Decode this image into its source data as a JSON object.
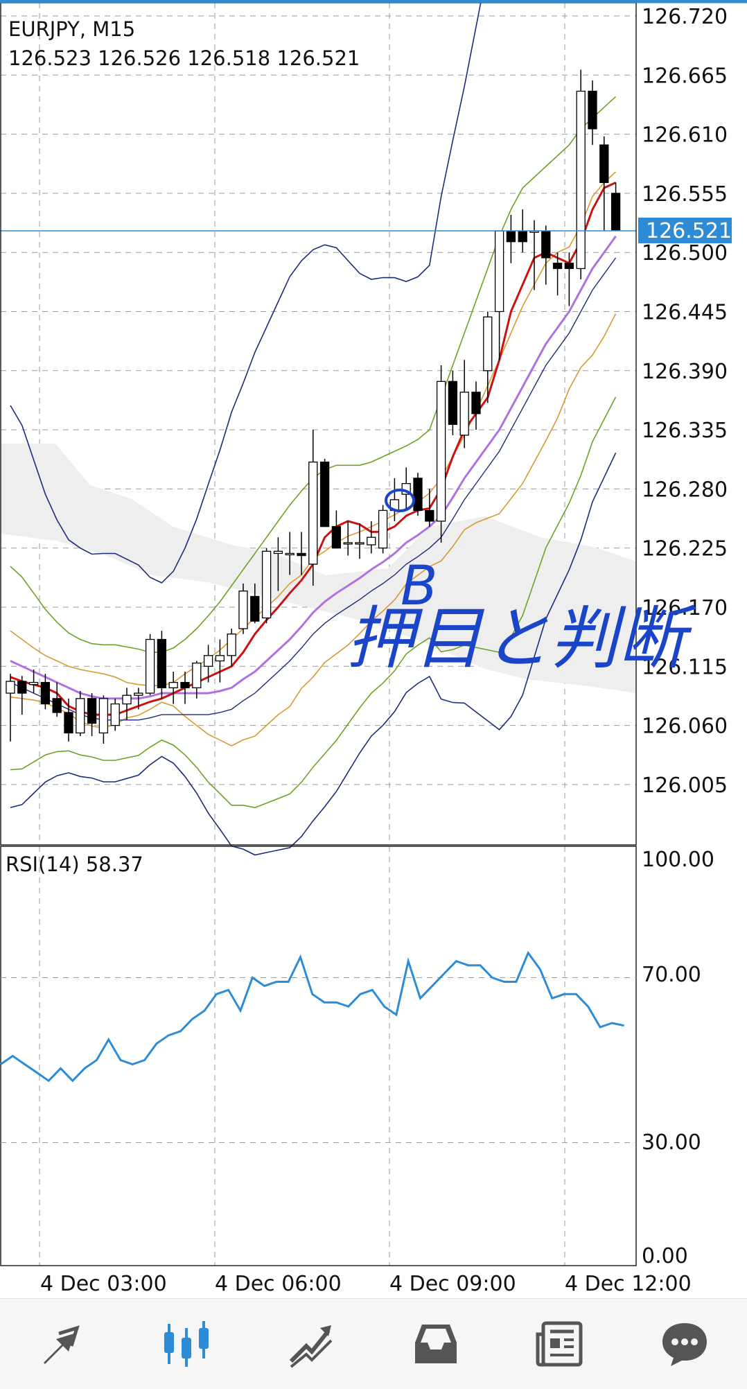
{
  "symbol": "EURJPY, M15",
  "ohlc_text": "126.523 126.526 126.518 126.521",
  "current_price": "126.521",
  "price_axis_labels": [
    "126.720",
    "126.665",
    "126.610",
    "126.555",
    "126.500",
    "126.445",
    "126.390",
    "126.335",
    "126.280",
    "126.225",
    "126.170",
    "126.115",
    "126.060",
    "126.005"
  ],
  "time_labels": [
    "4 Dec 03:00",
    "4 Dec 06:00",
    "4 Dec 09:00",
    "4 Dec 12:00"
  ],
  "rsi_title": "RSI(14) 58.37",
  "rsi_axis_labels": [
    "100.00",
    "70.00",
    "30.00",
    "0.00"
  ],
  "annotation_b": "B",
  "annotation_text": "押目と判断",
  "colors": {
    "rsi_line": "#2e8bd6",
    "ma_fast": "#cc1111",
    "ma_mid": "#b070e0",
    "bb_inner": "#d79a30",
    "bb_middle": "#6ea024",
    "bb_outer": "#1c2a7a",
    "cloud": "#eeeeee",
    "current_price_bg": "#2e8bd6",
    "handwriting": "#1a45c8",
    "nav_active": "#2e8bd6",
    "nav_inactive": "#555555"
  },
  "nav_items": [
    "quotes-icon",
    "chart-icon",
    "trade-icon",
    "history-icon",
    "news-icon",
    "chat-icon"
  ],
  "nav_active_index": 1,
  "chart_data": {
    "type": "candlestick",
    "timeframe": "M15",
    "ylim": [
      125.95,
      126.73
    ],
    "ohlc": [
      [
        126.09,
        126.108,
        126.045,
        126.101
      ],
      [
        126.101,
        126.106,
        126.07,
        126.09
      ],
      [
        126.098,
        126.112,
        126.09,
        126.1
      ],
      [
        126.1,
        126.108,
        126.075,
        126.08
      ],
      [
        126.085,
        126.1,
        126.068,
        126.072
      ],
      [
        126.072,
        126.085,
        126.045,
        126.053
      ],
      [
        126.053,
        126.092,
        126.05,
        126.085
      ],
      [
        126.085,
        126.09,
        126.05,
        126.062
      ],
      [
        126.053,
        126.088,
        126.043,
        126.085
      ],
      [
        126.06,
        126.085,
        126.055,
        126.08
      ],
      [
        126.08,
        126.095,
        126.065,
        126.088
      ],
      [
        126.088,
        126.095,
        126.075,
        126.09
      ],
      [
        126.09,
        126.145,
        126.088,
        126.14
      ],
      [
        126.14,
        126.148,
        126.085,
        126.095
      ],
      [
        126.095,
        126.11,
        126.08,
        126.1
      ],
      [
        126.1,
        126.11,
        126.08,
        126.095
      ],
      [
        126.095,
        126.12,
        126.085,
        126.118
      ],
      [
        126.115,
        126.135,
        126.1,
        126.125
      ],
      [
        126.12,
        126.14,
        126.1,
        126.125
      ],
      [
        126.125,
        126.15,
        126.115,
        126.145
      ],
      [
        126.15,
        126.192,
        126.145,
        126.185
      ],
      [
        126.18,
        126.192,
        126.155,
        126.157
      ],
      [
        126.16,
        126.225,
        126.155,
        126.222
      ],
      [
        126.22,
        126.235,
        126.185,
        126.222
      ],
      [
        126.22,
        126.24,
        126.2,
        126.22
      ],
      [
        126.22,
        126.24,
        126.2,
        126.218
      ],
      [
        126.21,
        126.335,
        126.19,
        126.305
      ],
      [
        126.305,
        126.308,
        126.245,
        126.245
      ],
      [
        126.245,
        126.26,
        126.225,
        126.225
      ],
      [
        126.23,
        126.25,
        126.218,
        126.23
      ],
      [
        126.23,
        126.248,
        126.215,
        126.23
      ],
      [
        126.228,
        126.25,
        126.22,
        126.235
      ],
      [
        126.225,
        126.265,
        126.22,
        126.26
      ],
      [
        126.26,
        126.29,
        126.25,
        126.27
      ],
      [
        126.275,
        126.3,
        126.26,
        126.285
      ],
      [
        126.29,
        126.295,
        126.255,
        126.26
      ],
      [
        126.26,
        126.28,
        126.245,
        126.25
      ],
      [
        126.25,
        126.395,
        126.23,
        126.38
      ],
      [
        126.38,
        126.39,
        126.33,
        126.34
      ],
      [
        126.33,
        126.4,
        126.318,
        126.37
      ],
      [
        126.37,
        126.38,
        126.335,
        126.35
      ],
      [
        126.39,
        126.445,
        126.36,
        126.44
      ],
      [
        126.445,
        126.52,
        126.4,
        126.52
      ],
      [
        126.52,
        126.535,
        126.49,
        126.51
      ],
      [
        126.52,
        126.54,
        126.5,
        126.51
      ],
      [
        126.52,
        126.53,
        126.465,
        126.52
      ],
      [
        126.52,
        126.525,
        126.47,
        126.495
      ],
      [
        126.49,
        126.5,
        126.46,
        126.485
      ],
      [
        126.49,
        126.5,
        126.45,
        126.485
      ],
      [
        126.485,
        126.67,
        126.475,
        126.65
      ],
      [
        126.65,
        126.66,
        126.6,
        126.615
      ],
      [
        126.6,
        126.608,
        126.52,
        126.565
      ],
      [
        126.555,
        126.565,
        126.52,
        126.521
      ]
    ],
    "ma_fast": [
      126.105,
      126.101,
      126.098,
      126.095,
      126.09,
      126.078,
      126.073,
      126.07,
      126.07,
      126.07,
      126.074,
      126.078,
      126.082,
      126.085,
      126.09,
      126.095,
      126.1,
      126.105,
      126.11,
      126.115,
      126.128,
      126.145,
      126.158,
      126.17,
      126.183,
      126.195,
      126.21,
      126.235,
      126.245,
      126.25,
      126.247,
      126.24,
      126.24,
      126.245,
      126.255,
      126.26,
      126.262,
      126.28,
      126.31,
      126.335,
      126.35,
      126.365,
      126.4,
      126.445,
      126.47,
      126.495,
      126.5,
      126.495,
      126.49,
      126.51,
      126.54,
      126.56,
      126.565
    ],
    "ma_mid": [
      126.12,
      126.115,
      126.11,
      126.105,
      126.1,
      126.095,
      126.09,
      126.087,
      126.085,
      126.085,
      126.085,
      126.085,
      126.087,
      126.09,
      126.09,
      126.09,
      126.09,
      126.09,
      126.092,
      126.095,
      126.103,
      126.11,
      126.12,
      126.13,
      126.14,
      126.152,
      126.165,
      126.175,
      126.183,
      126.19,
      126.197,
      126.205,
      126.212,
      126.22,
      126.23,
      126.237,
      126.245,
      126.255,
      126.272,
      126.29,
      126.305,
      126.32,
      126.335,
      126.355,
      126.375,
      126.395,
      126.415,
      126.43,
      126.445,
      126.465,
      126.485,
      126.5,
      126.515
    ],
    "bb_inner": [
      126.148,
      126.14,
      126.132,
      126.125,
      126.12,
      126.115,
      126.112,
      126.11,
      126.108,
      126.105,
      126.1,
      126.098,
      126.097,
      126.097,
      126.1,
      126.108,
      126.115,
      126.122,
      126.13,
      126.14,
      126.15,
      126.16,
      126.17,
      126.18,
      126.192,
      126.2,
      126.215,
      126.222,
      126.23,
      126.236,
      126.24,
      126.245,
      126.25,
      126.256,
      126.262,
      126.268,
      126.276,
      126.29,
      126.31,
      126.33,
      126.352,
      126.376,
      126.4,
      126.425,
      126.45,
      126.47,
      126.49,
      126.5,
      126.505,
      126.525,
      126.552,
      126.565,
      126.575
    ],
    "bb_middle": [
      126.208,
      126.198,
      126.183,
      126.168,
      126.156,
      126.146,
      126.14,
      126.136,
      126.135,
      126.135,
      126.133,
      126.131,
      126.128,
      126.128,
      126.132,
      126.14,
      126.15,
      126.162,
      126.175,
      126.19,
      126.205,
      126.22,
      126.235,
      126.25,
      126.265,
      126.278,
      126.29,
      126.298,
      126.302,
      126.302,
      126.302,
      126.305,
      126.31,
      126.315,
      126.32,
      126.326,
      126.335,
      126.365,
      126.395,
      126.425,
      126.455,
      126.485,
      126.515,
      126.54,
      126.56,
      126.57,
      126.58,
      126.59,
      126.6,
      126.615,
      126.625,
      126.635,
      126.645
    ]
  }
}
